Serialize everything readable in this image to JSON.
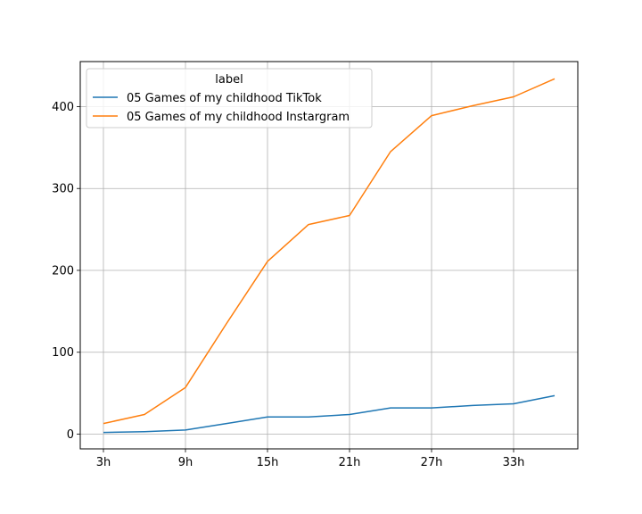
{
  "chart_data": {
    "type": "line",
    "title": "",
    "xlabel": "",
    "ylabel": "",
    "x": [
      "3h",
      "6h",
      "9h",
      "12h",
      "15h",
      "18h",
      "21h",
      "24h",
      "27h",
      "30h",
      "33h",
      "36h"
    ],
    "x_ticks": [
      "3h",
      "9h",
      "15h",
      "21h",
      "27h",
      "33h"
    ],
    "y_ticks": [
      0,
      100,
      200,
      300,
      400
    ],
    "ylim": [
      -18,
      455
    ],
    "grid": true,
    "legend": {
      "title": "label",
      "placement": "top-left"
    },
    "series": [
      {
        "name": "05 Games of my childhood TikTok",
        "color": "#1f77b4",
        "values": [
          2,
          3,
          5,
          13,
          21,
          21,
          24,
          32,
          32,
          35,
          37,
          47
        ]
      },
      {
        "name": "05 Games of my childhood Instargram",
        "color": "#ff7f0e",
        "values": [
          13,
          24,
          57,
          135,
          211,
          256,
          267,
          345,
          389,
          401,
          412,
          434
        ]
      }
    ]
  }
}
